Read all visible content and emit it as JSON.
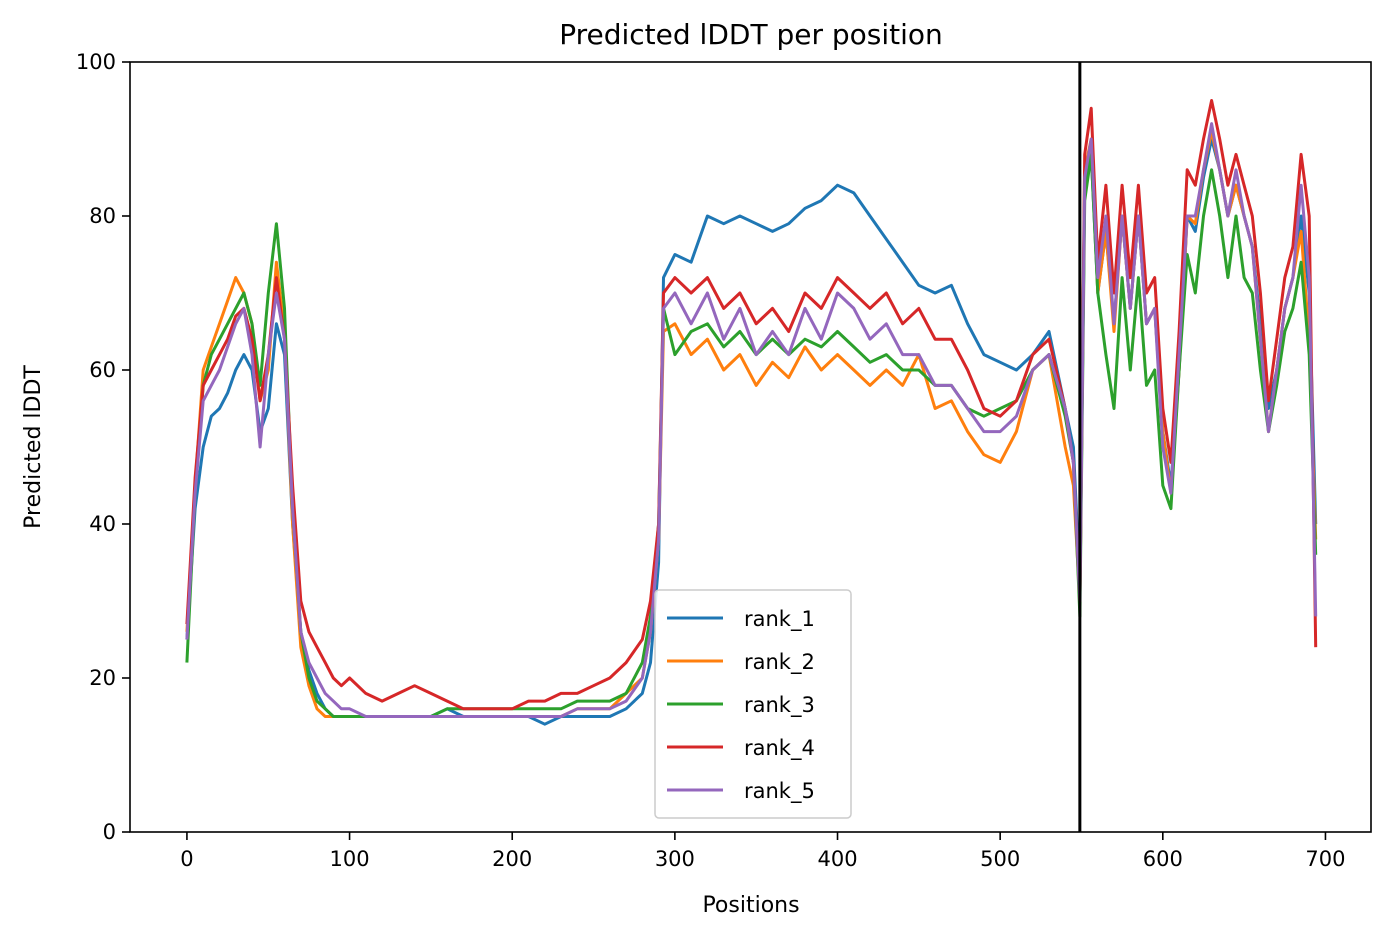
{
  "chart_data": {
    "type": "line",
    "title": "Predicted lDDT per position",
    "xlabel": "Positions",
    "ylabel": "Predicted lDDT",
    "xlim": [
      -35,
      728
    ],
    "ylim": [
      0,
      100
    ],
    "xticks": [
      0,
      100,
      200,
      300,
      400,
      500,
      600,
      700
    ],
    "yticks": [
      0,
      20,
      40,
      60,
      80,
      100
    ],
    "vline_x": 549,
    "legend_position": "lower-center",
    "grid": false,
    "colors": [
      "#1f77b4",
      "#ff7f0e",
      "#2ca02c",
      "#d62728",
      "#9467bd"
    ],
    "x": [
      0,
      5,
      10,
      15,
      20,
      25,
      30,
      35,
      40,
      45,
      50,
      55,
      60,
      65,
      70,
      75,
      80,
      85,
      90,
      95,
      100,
      110,
      120,
      130,
      140,
      150,
      160,
      170,
      180,
      190,
      200,
      210,
      220,
      230,
      240,
      250,
      260,
      270,
      280,
      285,
      290,
      293,
      300,
      310,
      320,
      330,
      340,
      350,
      360,
      370,
      380,
      390,
      400,
      410,
      420,
      430,
      440,
      450,
      460,
      470,
      480,
      490,
      500,
      510,
      520,
      530,
      540,
      545,
      549,
      552,
      556,
      560,
      565,
      570,
      575,
      580,
      585,
      590,
      595,
      600,
      605,
      610,
      615,
      620,
      625,
      630,
      635,
      640,
      645,
      650,
      655,
      660,
      665,
      670,
      675,
      680,
      685,
      690,
      694
    ],
    "series": [
      {
        "name": "rank_1",
        "values": [
          25,
          42,
          50,
          54,
          55,
          57,
          60,
          62,
          60,
          52,
          55,
          66,
          62,
          40,
          26,
          21,
          18,
          16,
          15,
          15,
          15,
          15,
          15,
          15,
          15,
          15,
          16,
          15,
          15,
          15,
          15,
          15,
          14,
          15,
          15,
          15,
          15,
          16,
          18,
          22,
          35,
          72,
          75,
          74,
          80,
          79,
          80,
          79,
          78,
          79,
          81,
          82,
          84,
          83,
          80,
          77,
          74,
          71,
          70,
          71,
          66,
          62,
          61,
          60,
          62,
          65,
          55,
          50,
          32,
          84,
          88,
          70,
          78,
          66,
          80,
          68,
          80,
          66,
          68,
          52,
          45,
          60,
          80,
          78,
          85,
          90,
          86,
          80,
          84,
          80,
          76,
          66,
          55,
          60,
          68,
          72,
          80,
          70,
          40
        ]
      },
      {
        "name": "rank_2",
        "values": [
          26,
          45,
          60,
          63,
          66,
          69,
          72,
          70,
          66,
          56,
          60,
          74,
          65,
          40,
          24,
          19,
          16,
          15,
          15,
          15,
          15,
          15,
          15,
          15,
          15,
          15,
          15,
          15,
          15,
          15,
          15,
          15,
          15,
          15,
          16,
          16,
          16,
          18,
          20,
          26,
          38,
          65,
          66,
          62,
          64,
          60,
          62,
          58,
          61,
          59,
          63,
          60,
          62,
          60,
          58,
          60,
          58,
          62,
          55,
          56,
          52,
          49,
          48,
          52,
          60,
          62,
          50,
          45,
          30,
          86,
          90,
          70,
          78,
          65,
          80,
          68,
          80,
          66,
          68,
          52,
          44,
          60,
          80,
          79,
          86,
          91,
          86,
          80,
          84,
          80,
          76,
          64,
          52,
          60,
          68,
          72,
          78,
          64,
          38
        ]
      },
      {
        "name": "rank_3",
        "values": [
          22,
          44,
          58,
          62,
          64,
          66,
          68,
          70,
          66,
          58,
          70,
          79,
          68,
          42,
          26,
          20,
          17,
          16,
          15,
          15,
          15,
          15,
          15,
          15,
          15,
          15,
          16,
          16,
          16,
          16,
          16,
          16,
          16,
          16,
          17,
          17,
          17,
          18,
          22,
          28,
          40,
          68,
          62,
          65,
          66,
          63,
          65,
          62,
          64,
          62,
          64,
          63,
          65,
          63,
          61,
          62,
          60,
          60,
          58,
          58,
          55,
          54,
          55,
          56,
          60,
          62,
          54,
          48,
          28,
          82,
          88,
          70,
          62,
          55,
          72,
          60,
          72,
          58,
          60,
          45,
          42,
          60,
          75,
          70,
          80,
          86,
          80,
          72,
          80,
          72,
          70,
          60,
          52,
          58,
          65,
          68,
          74,
          62,
          36
        ]
      },
      {
        "name": "rank_4",
        "values": [
          27,
          46,
          58,
          60,
          62,
          64,
          67,
          68,
          64,
          56,
          62,
          72,
          64,
          45,
          30,
          26,
          24,
          22,
          20,
          19,
          20,
          18,
          17,
          18,
          19,
          18,
          17,
          16,
          16,
          16,
          16,
          17,
          17,
          18,
          18,
          19,
          20,
          22,
          25,
          30,
          40,
          70,
          72,
          70,
          72,
          68,
          70,
          66,
          68,
          65,
          70,
          68,
          72,
          70,
          68,
          70,
          66,
          68,
          64,
          64,
          60,
          55,
          54,
          56,
          62,
          64,
          55,
          48,
          30,
          88,
          94,
          74,
          84,
          70,
          84,
          72,
          84,
          70,
          72,
          55,
          48,
          65,
          86,
          84,
          90,
          95,
          90,
          84,
          88,
          84,
          80,
          70,
          56,
          64,
          72,
          76,
          88,
          80,
          24
        ]
      },
      {
        "name": "rank_5",
        "values": [
          25,
          44,
          56,
          58,
          60,
          63,
          66,
          68,
          62,
          50,
          62,
          70,
          64,
          42,
          26,
          22,
          20,
          18,
          17,
          16,
          16,
          15,
          15,
          15,
          15,
          15,
          15,
          15,
          15,
          15,
          15,
          15,
          15,
          15,
          16,
          16,
          16,
          17,
          20,
          26,
          38,
          68,
          70,
          66,
          70,
          64,
          68,
          62,
          65,
          62,
          68,
          64,
          70,
          68,
          64,
          66,
          62,
          62,
          58,
          58,
          55,
          52,
          52,
          54,
          60,
          62,
          55,
          48,
          30,
          85,
          90,
          72,
          80,
          66,
          80,
          68,
          80,
          66,
          68,
          50,
          44,
          62,
          80,
          80,
          86,
          92,
          86,
          80,
          86,
          80,
          76,
          64,
          52,
          60,
          68,
          72,
          84,
          72,
          28
        ]
      }
    ]
  }
}
